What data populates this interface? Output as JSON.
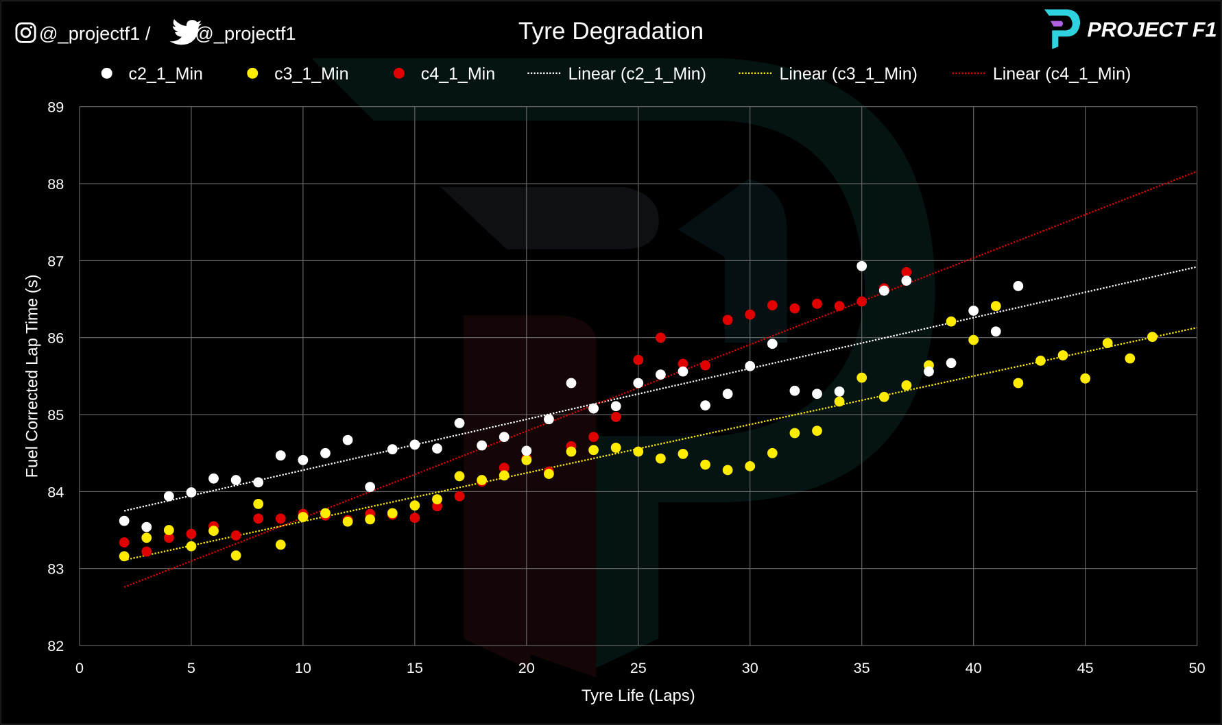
{
  "header": {
    "social_handle": "@_projectf1 / ",
    "social_handle_2": "@_projectf1",
    "logo_text": "PROJECT F1"
  },
  "colors": {
    "c2": "#ffffff",
    "c3": "#ffec00",
    "c4": "#e00000",
    "background": "#000000",
    "grid": "#6a6a6a"
  },
  "chart_data": {
    "type": "scatter",
    "title": "Tyre Degradation",
    "xlabel": "Tyre Life (Laps)",
    "ylabel": "Fuel Corrected Lap Time (s)",
    "xlim": [
      0,
      50
    ],
    "ylim": [
      82,
      89
    ],
    "xticks": [
      0,
      5,
      10,
      15,
      20,
      25,
      30,
      35,
      40,
      45,
      50
    ],
    "yticks": [
      82,
      83,
      84,
      85,
      86,
      87,
      88,
      89
    ],
    "grid": true,
    "legend_placement": "top",
    "series": [
      {
        "name": "c2_1_Min",
        "color": "#ffffff",
        "x": [
          2,
          3,
          4,
          5,
          6,
          7,
          8,
          9,
          10,
          11,
          12,
          13,
          14,
          15,
          16,
          17,
          18,
          19,
          20,
          21,
          22,
          23,
          24,
          25,
          26,
          27,
          28,
          29,
          30,
          31,
          32,
          33,
          34,
          35,
          36,
          37,
          38,
          39,
          40,
          41,
          42
        ],
        "y": [
          83.62,
          83.54,
          83.94,
          83.99,
          84.17,
          84.15,
          84.12,
          84.47,
          84.41,
          84.5,
          84.67,
          84.06,
          84.55,
          84.61,
          84.56,
          84.89,
          84.6,
          84.71,
          84.53,
          84.94,
          85.41,
          85.08,
          85.11,
          85.41,
          85.52,
          85.56,
          85.12,
          85.27,
          85.63,
          85.92,
          85.31,
          85.27,
          85.3,
          86.93,
          86.61,
          86.74,
          85.56,
          85.67,
          86.35,
          86.08,
          86.67
        ]
      },
      {
        "name": "c3_1_Min",
        "color": "#ffec00",
        "x": [
          2,
          3,
          4,
          5,
          6,
          7,
          8,
          9,
          10,
          11,
          12,
          13,
          14,
          15,
          16,
          17,
          18,
          19,
          20,
          21,
          22,
          23,
          24,
          25,
          26,
          27,
          28,
          29,
          30,
          31,
          32,
          33,
          34,
          35,
          36,
          37,
          38,
          39,
          40,
          41,
          42,
          43,
          44,
          45,
          46,
          47,
          48
        ],
        "y": [
          83.16,
          83.4,
          83.5,
          83.29,
          83.49,
          83.17,
          83.84,
          83.31,
          83.67,
          83.72,
          83.61,
          83.64,
          83.72,
          83.82,
          83.9,
          84.2,
          84.15,
          84.21,
          84.41,
          84.23,
          84.52,
          84.54,
          84.57,
          84.52,
          84.43,
          84.49,
          84.35,
          84.28,
          84.33,
          84.5,
          84.76,
          84.79,
          85.17,
          85.48,
          85.23,
          85.38,
          85.64,
          86.21,
          85.97,
          86.41,
          85.41,
          85.7,
          85.77,
          85.47,
          85.93,
          85.73,
          86.01
        ]
      },
      {
        "name": "c4_1_Min",
        "color": "#e00000",
        "x": [
          2,
          3,
          4,
          5,
          6,
          7,
          8,
          9,
          10,
          11,
          12,
          13,
          14,
          15,
          16,
          17,
          18,
          19,
          20,
          21,
          22,
          23,
          24,
          25,
          26,
          27,
          28,
          29,
          30,
          31,
          32,
          33,
          34,
          35,
          36,
          37
        ],
        "y": [
          83.34,
          83.22,
          83.4,
          83.45,
          83.55,
          83.43,
          83.65,
          83.65,
          83.71,
          83.69,
          83.63,
          83.71,
          83.7,
          83.66,
          83.81,
          83.94,
          84.13,
          84.31,
          84.43,
          84.26,
          84.59,
          84.71,
          84.97,
          85.71,
          86.0,
          85.66,
          85.64,
          86.23,
          86.3,
          86.42,
          86.38,
          86.44,
          86.41,
          86.47,
          86.64,
          86.85
        ]
      }
    ],
    "trendlines": [
      {
        "name": "Linear (c2_1_Min)",
        "color": "#ffffff",
        "x": [
          2,
          50
        ],
        "y": [
          83.75,
          86.92
        ]
      },
      {
        "name": "Linear (c3_1_Min)",
        "color": "#ffec00",
        "x": [
          2,
          50
        ],
        "y": [
          83.11,
          86.13
        ]
      },
      {
        "name": "Linear (c4_1_Min)",
        "color": "#e00000",
        "x": [
          2,
          50
        ],
        "y": [
          82.76,
          88.16
        ]
      }
    ]
  }
}
